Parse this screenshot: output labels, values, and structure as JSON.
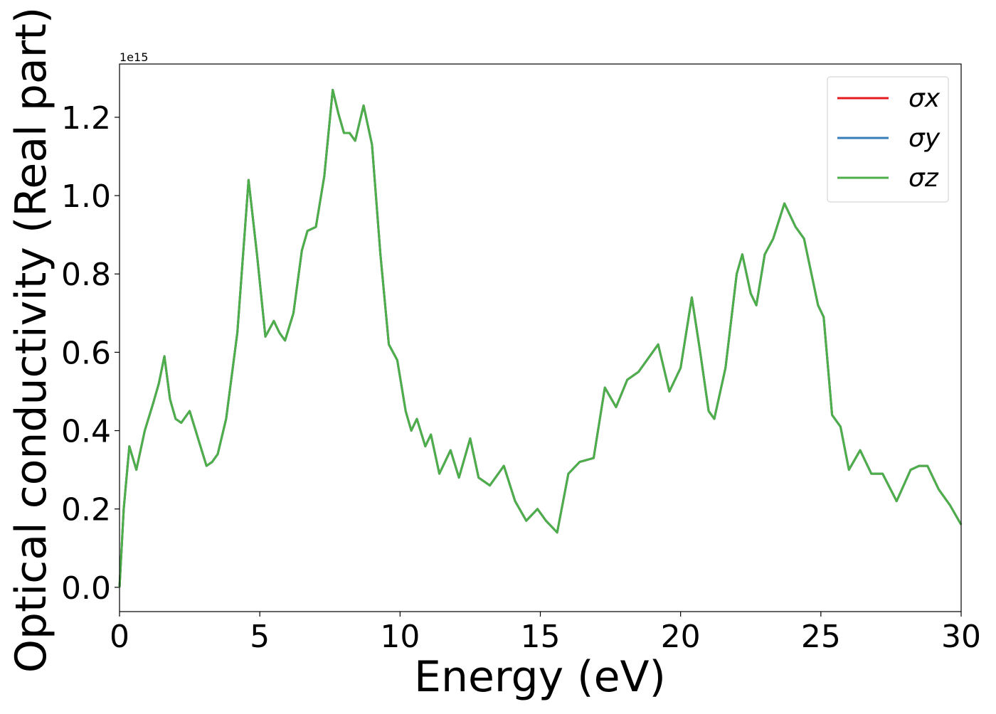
{
  "chart_data": {
    "type": "line",
    "x_label": "Energy (eV)",
    "y_label": "Optical conductivity (Real part)",
    "y_offset_text": "1e15",
    "x": [
      0,
      0.15,
      0.35,
      0.6,
      0.9,
      1.2,
      1.4,
      1.6,
      1.8,
      2.0,
      2.2,
      2.5,
      2.8,
      3.1,
      3.3,
      3.5,
      3.8,
      4.2,
      4.6,
      4.9,
      5.2,
      5.5,
      5.7,
      5.9,
      6.2,
      6.5,
      6.7,
      7.0,
      7.3,
      7.6,
      7.8,
      8.0,
      8.2,
      8.4,
      8.7,
      9.0,
      9.3,
      9.6,
      9.9,
      10.2,
      10.4,
      10.6,
      10.9,
      11.1,
      11.4,
      11.8,
      12.1,
      12.5,
      12.8,
      13.2,
      13.7,
      14.1,
      14.5,
      14.9,
      15.2,
      15.6,
      16.0,
      16.4,
      16.9,
      17.3,
      17.7,
      18.1,
      18.5,
      18.9,
      19.2,
      19.6,
      20.0,
      20.4,
      20.7,
      21.0,
      21.2,
      21.6,
      22.0,
      22.2,
      22.5,
      22.7,
      23.0,
      23.3,
      23.7,
      24.1,
      24.4,
      24.9,
      25.1,
      25.4,
      25.7,
      26.0,
      26.4,
      26.8,
      27.2,
      27.7,
      28.2,
      28.5,
      28.8,
      29.2,
      29.6,
      30.0
    ],
    "series": [
      {
        "name": "σx",
        "color": "#e41a1c",
        "values": [
          0,
          0.2,
          0.36,
          0.3,
          0.4,
          0.47,
          0.52,
          0.59,
          0.48,
          0.43,
          0.42,
          0.45,
          0.38,
          0.31,
          0.32,
          0.34,
          0.43,
          0.65,
          1.04,
          0.85,
          0.64,
          0.68,
          0.65,
          0.63,
          0.7,
          0.86,
          0.91,
          0.92,
          1.05,
          1.27,
          1.21,
          1.16,
          1.16,
          1.14,
          1.23,
          1.13,
          0.85,
          0.62,
          0.58,
          0.45,
          0.4,
          0.43,
          0.36,
          0.39,
          0.29,
          0.35,
          0.28,
          0.38,
          0.28,
          0.26,
          0.31,
          0.22,
          0.17,
          0.2,
          0.17,
          0.14,
          0.29,
          0.32,
          0.33,
          0.51,
          0.46,
          0.53,
          0.55,
          0.59,
          0.62,
          0.5,
          0.56,
          0.74,
          0.6,
          0.45,
          0.43,
          0.56,
          0.8,
          0.85,
          0.75,
          0.72,
          0.85,
          0.89,
          0.98,
          0.92,
          0.89,
          0.72,
          0.69,
          0.44,
          0.41,
          0.3,
          0.35,
          0.29,
          0.29,
          0.22,
          0.3,
          0.31,
          0.31,
          0.25,
          0.21,
          0.16
        ]
      },
      {
        "name": "σy",
        "color": "#377eb8",
        "values": [
          0,
          0.2,
          0.36,
          0.3,
          0.4,
          0.47,
          0.52,
          0.59,
          0.48,
          0.43,
          0.42,
          0.45,
          0.38,
          0.31,
          0.32,
          0.34,
          0.43,
          0.65,
          1.04,
          0.85,
          0.64,
          0.68,
          0.65,
          0.63,
          0.7,
          0.86,
          0.91,
          0.92,
          1.05,
          1.27,
          1.21,
          1.16,
          1.16,
          1.14,
          1.23,
          1.13,
          0.85,
          0.62,
          0.58,
          0.45,
          0.4,
          0.43,
          0.36,
          0.39,
          0.29,
          0.35,
          0.28,
          0.38,
          0.28,
          0.26,
          0.31,
          0.22,
          0.17,
          0.2,
          0.17,
          0.14,
          0.29,
          0.32,
          0.33,
          0.51,
          0.46,
          0.53,
          0.55,
          0.59,
          0.62,
          0.5,
          0.56,
          0.74,
          0.6,
          0.45,
          0.43,
          0.56,
          0.8,
          0.85,
          0.75,
          0.72,
          0.85,
          0.89,
          0.98,
          0.92,
          0.89,
          0.72,
          0.69,
          0.44,
          0.41,
          0.3,
          0.35,
          0.29,
          0.29,
          0.22,
          0.3,
          0.31,
          0.31,
          0.25,
          0.21,
          0.16
        ]
      },
      {
        "name": "σz",
        "color": "#4daf4a",
        "values": [
          0,
          0.2,
          0.36,
          0.3,
          0.4,
          0.47,
          0.52,
          0.59,
          0.48,
          0.43,
          0.42,
          0.45,
          0.38,
          0.31,
          0.32,
          0.34,
          0.43,
          0.65,
          1.04,
          0.85,
          0.64,
          0.68,
          0.65,
          0.63,
          0.7,
          0.86,
          0.91,
          0.92,
          1.05,
          1.27,
          1.21,
          1.16,
          1.16,
          1.14,
          1.23,
          1.13,
          0.85,
          0.62,
          0.58,
          0.45,
          0.4,
          0.43,
          0.36,
          0.39,
          0.29,
          0.35,
          0.28,
          0.38,
          0.28,
          0.26,
          0.31,
          0.22,
          0.17,
          0.2,
          0.17,
          0.14,
          0.29,
          0.32,
          0.33,
          0.51,
          0.46,
          0.53,
          0.55,
          0.59,
          0.62,
          0.5,
          0.56,
          0.74,
          0.6,
          0.45,
          0.43,
          0.56,
          0.8,
          0.85,
          0.75,
          0.72,
          0.85,
          0.89,
          0.98,
          0.92,
          0.89,
          0.72,
          0.69,
          0.44,
          0.41,
          0.3,
          0.35,
          0.29,
          0.29,
          0.22,
          0.3,
          0.31,
          0.31,
          0.25,
          0.21,
          0.16
        ]
      }
    ],
    "xlim": [
      0,
      30
    ],
    "xticks": [
      0,
      5,
      10,
      15,
      20,
      25,
      30
    ],
    "ylim": [
      -0.062,
      1.336
    ],
    "yticks": [
      {
        "value": 0,
        "label": "0.0"
      },
      0.2,
      0.4,
      0.6,
      0.8,
      {
        "value": 1,
        "label": "1.0"
      },
      1.2
    ],
    "grid": false,
    "legend": "upper right"
  }
}
